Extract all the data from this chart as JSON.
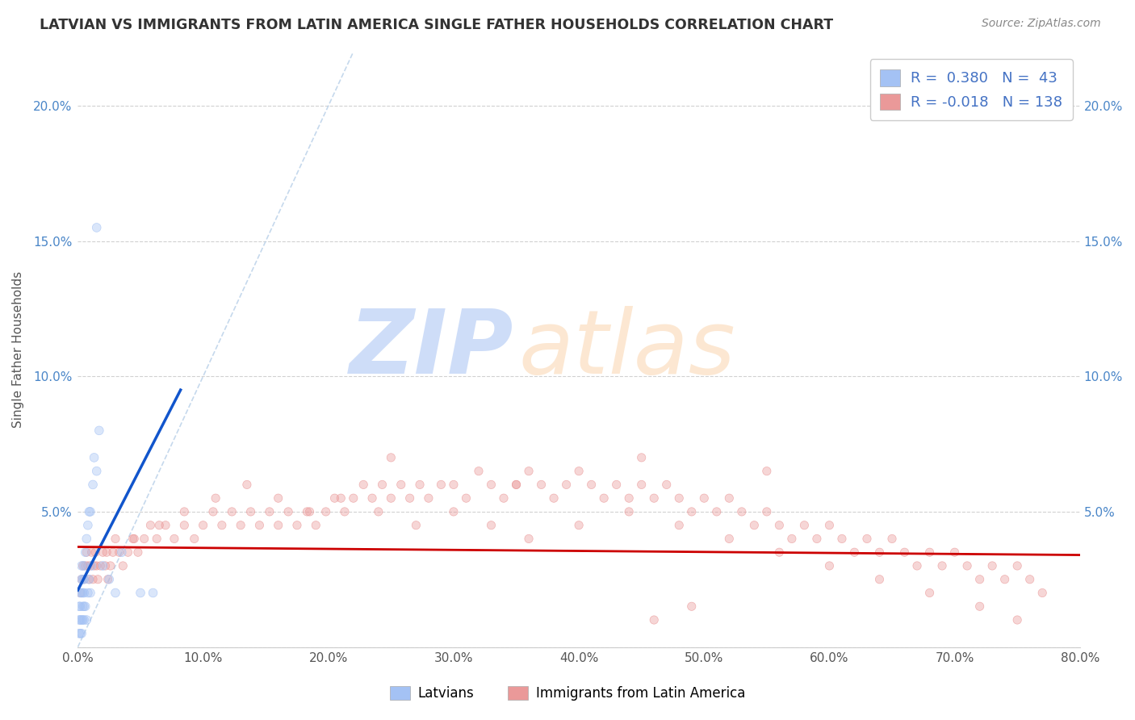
{
  "title": "LATVIAN VS IMMIGRANTS FROM LATIN AMERICA SINGLE FATHER HOUSEHOLDS CORRELATION CHART",
  "source": "Source: ZipAtlas.com",
  "ylabel": "Single Father Households",
  "xlim": [
    0,
    0.8
  ],
  "ylim": [
    0,
    0.22
  ],
  "xticks": [
    0.0,
    0.1,
    0.2,
    0.3,
    0.4,
    0.5,
    0.6,
    0.7,
    0.8
  ],
  "xtick_labels": [
    "0.0%",
    "10.0%",
    "20.0%",
    "30.0%",
    "40.0%",
    "50.0%",
    "60.0%",
    "70.0%",
    "80.0%"
  ],
  "yticks": [
    0.0,
    0.05,
    0.1,
    0.15,
    0.2
  ],
  "ytick_labels": [
    "",
    "5.0%",
    "10.0%",
    "15.0%",
    "20.0%"
  ],
  "legend_blue_r": "0.380",
  "legend_blue_n": "43",
  "legend_pink_r": "-0.018",
  "legend_pink_n": "138",
  "legend_label_latvians": "Latvians",
  "legend_label_latin": "Immigrants from Latin America",
  "blue_color": "#a4c2f4",
  "pink_color": "#ea9999",
  "blue_line_color": "#1155cc",
  "pink_line_color": "#cc0000",
  "background_color": "#ffffff",
  "grid_color": "#cccccc",
  "diag_color": "#b7cfe8",
  "watermark_zip_color": "#c9daf8",
  "watermark_atlas_color": "#fce5cd",
  "lv_x": [
    0.001,
    0.001,
    0.001,
    0.002,
    0.002,
    0.002,
    0.002,
    0.003,
    0.003,
    0.003,
    0.003,
    0.003,
    0.004,
    0.004,
    0.004,
    0.004,
    0.005,
    0.005,
    0.005,
    0.005,
    0.005,
    0.006,
    0.006,
    0.007,
    0.007,
    0.008,
    0.008,
    0.009,
    0.009,
    0.01,
    0.01,
    0.011,
    0.012,
    0.013,
    0.015,
    0.017,
    0.02,
    0.025,
    0.03,
    0.035,
    0.05,
    0.06,
    0.015
  ],
  "lv_y": [
    0.005,
    0.01,
    0.015,
    0.005,
    0.01,
    0.015,
    0.02,
    0.005,
    0.01,
    0.02,
    0.025,
    0.03,
    0.01,
    0.015,
    0.02,
    0.025,
    0.01,
    0.015,
    0.02,
    0.025,
    0.03,
    0.015,
    0.035,
    0.01,
    0.04,
    0.02,
    0.045,
    0.025,
    0.05,
    0.02,
    0.05,
    0.03,
    0.06,
    0.07,
    0.065,
    0.08,
    0.03,
    0.025,
    0.02,
    0.035,
    0.02,
    0.02,
    0.155
  ],
  "lat_x": [
    0.002,
    0.003,
    0.004,
    0.005,
    0.006,
    0.007,
    0.008,
    0.009,
    0.01,
    0.011,
    0.012,
    0.013,
    0.014,
    0.015,
    0.016,
    0.018,
    0.02,
    0.022,
    0.024,
    0.026,
    0.028,
    0.03,
    0.033,
    0.036,
    0.04,
    0.044,
    0.048,
    0.053,
    0.058,
    0.063,
    0.07,
    0.077,
    0.085,
    0.093,
    0.1,
    0.108,
    0.115,
    0.123,
    0.13,
    0.138,
    0.145,
    0.153,
    0.16,
    0.168,
    0.175,
    0.183,
    0.19,
    0.198,
    0.205,
    0.213,
    0.22,
    0.228,
    0.235,
    0.243,
    0.25,
    0.258,
    0.265,
    0.273,
    0.28,
    0.29,
    0.3,
    0.31,
    0.32,
    0.33,
    0.34,
    0.35,
    0.36,
    0.37,
    0.38,
    0.39,
    0.4,
    0.41,
    0.42,
    0.43,
    0.44,
    0.45,
    0.46,
    0.47,
    0.48,
    0.49,
    0.5,
    0.51,
    0.52,
    0.53,
    0.54,
    0.55,
    0.56,
    0.57,
    0.58,
    0.59,
    0.6,
    0.61,
    0.62,
    0.63,
    0.64,
    0.65,
    0.66,
    0.67,
    0.68,
    0.69,
    0.7,
    0.71,
    0.72,
    0.73,
    0.74,
    0.75,
    0.76,
    0.77,
    0.023,
    0.045,
    0.065,
    0.085,
    0.11,
    0.135,
    0.16,
    0.185,
    0.21,
    0.24,
    0.27,
    0.3,
    0.33,
    0.36,
    0.4,
    0.44,
    0.48,
    0.52,
    0.56,
    0.6,
    0.64,
    0.68,
    0.72,
    0.75,
    0.46,
    0.49,
    0.25,
    0.35,
    0.45,
    0.55
  ],
  "lat_y": [
    0.02,
    0.025,
    0.03,
    0.025,
    0.03,
    0.035,
    0.03,
    0.025,
    0.03,
    0.035,
    0.025,
    0.03,
    0.035,
    0.03,
    0.025,
    0.03,
    0.035,
    0.03,
    0.025,
    0.03,
    0.035,
    0.04,
    0.035,
    0.03,
    0.035,
    0.04,
    0.035,
    0.04,
    0.045,
    0.04,
    0.045,
    0.04,
    0.045,
    0.04,
    0.045,
    0.05,
    0.045,
    0.05,
    0.045,
    0.05,
    0.045,
    0.05,
    0.045,
    0.05,
    0.045,
    0.05,
    0.045,
    0.05,
    0.055,
    0.05,
    0.055,
    0.06,
    0.055,
    0.06,
    0.055,
    0.06,
    0.055,
    0.06,
    0.055,
    0.06,
    0.06,
    0.055,
    0.065,
    0.06,
    0.055,
    0.06,
    0.065,
    0.06,
    0.055,
    0.06,
    0.065,
    0.06,
    0.055,
    0.06,
    0.055,
    0.06,
    0.055,
    0.06,
    0.055,
    0.05,
    0.055,
    0.05,
    0.055,
    0.05,
    0.045,
    0.05,
    0.045,
    0.04,
    0.045,
    0.04,
    0.045,
    0.04,
    0.035,
    0.04,
    0.035,
    0.04,
    0.035,
    0.03,
    0.035,
    0.03,
    0.035,
    0.03,
    0.025,
    0.03,
    0.025,
    0.03,
    0.025,
    0.02,
    0.035,
    0.04,
    0.045,
    0.05,
    0.055,
    0.06,
    0.055,
    0.05,
    0.055,
    0.05,
    0.045,
    0.05,
    0.045,
    0.04,
    0.045,
    0.05,
    0.045,
    0.04,
    0.035,
    0.03,
    0.025,
    0.02,
    0.015,
    0.01,
    0.01,
    0.015,
    0.07,
    0.06,
    0.07,
    0.065
  ],
  "blue_trend_x": [
    0.0,
    0.082
  ],
  "blue_trend_y": [
    0.021,
    0.095
  ],
  "pink_trend_x": [
    0.0,
    0.8
  ],
  "pink_trend_y": [
    0.037,
    0.034
  ]
}
